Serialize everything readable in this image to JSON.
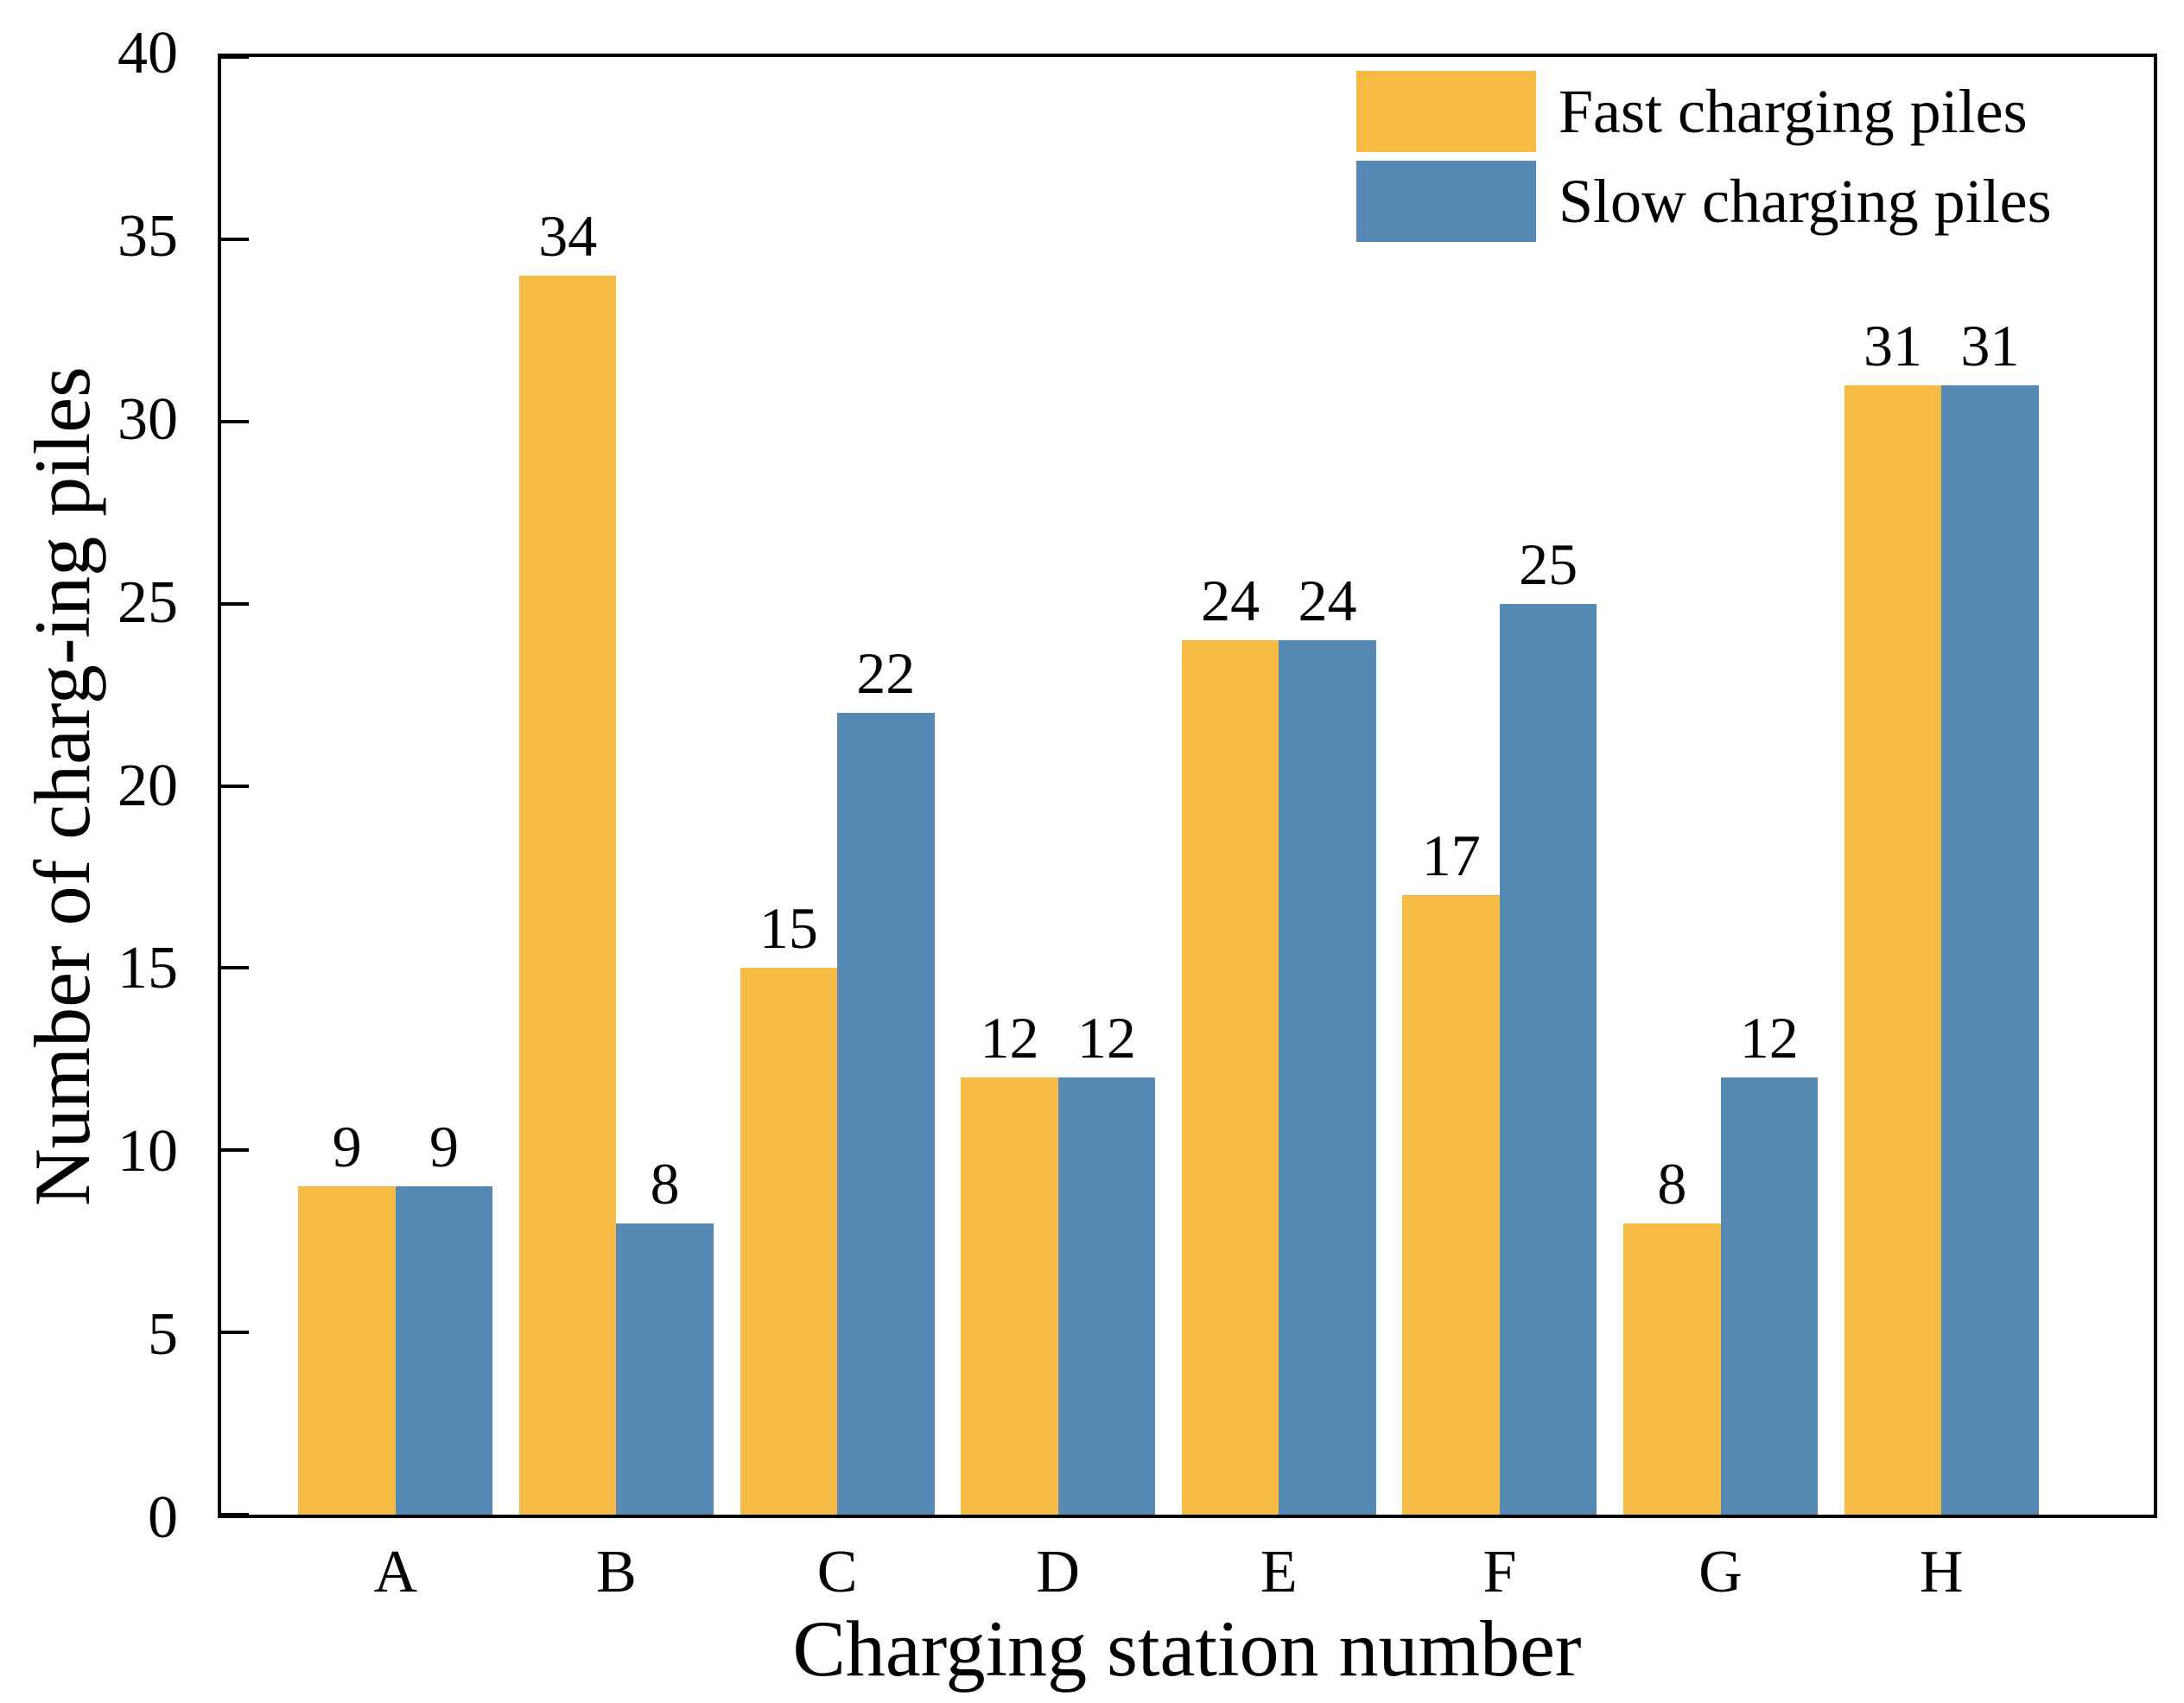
{
  "figure": {
    "background": "#ffffff",
    "axis_color": "#000000",
    "text_color": "#000000"
  },
  "chart_data": {
    "type": "bar",
    "title": "",
    "xlabel": "Charging station number",
    "ylabel": "Number of charg-ing piles",
    "categories": [
      "A",
      "B",
      "C",
      "D",
      "E",
      "F",
      "G",
      "H"
    ],
    "series": [
      {
        "name": "Fast charging piles",
        "color": "#F5BB44",
        "values": [
          9,
          34,
          15,
          12,
          24,
          17,
          8,
          31
        ]
      },
      {
        "name": "Slow charging piles",
        "color": "#5589B4",
        "values": [
          9,
          8,
          22,
          12,
          24,
          25,
          12,
          31
        ]
      }
    ],
    "ylim": [
      0,
      40
    ],
    "yticks": [
      0,
      5,
      10,
      15,
      20,
      25,
      30,
      35,
      40
    ],
    "bar_value_labels": true,
    "grid": false,
    "plot_border": true,
    "tick_direction": "in",
    "legend_position": "top-right"
  }
}
